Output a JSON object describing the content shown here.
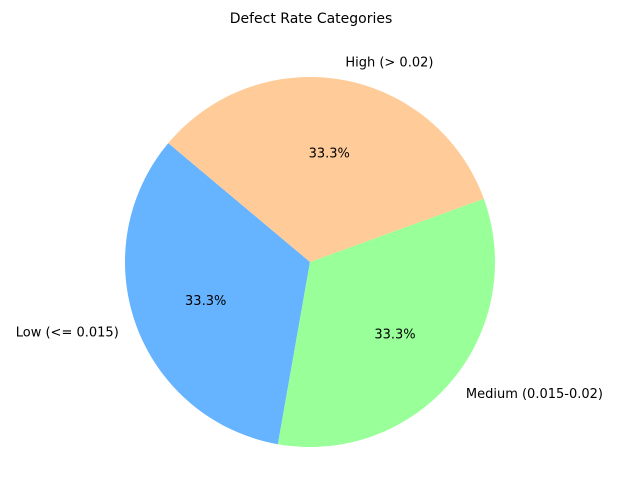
{
  "chart_data": {
    "type": "pie",
    "title": "Defect Rate Categories",
    "start_angle_deg": 140,
    "direction": "counterclockwise",
    "slices": [
      {
        "label": "Low (<= 0.015)",
        "value": 33.3,
        "pct_label": "33.3%",
        "color": "#66b3ff"
      },
      {
        "label": "Medium (0.015-0.02)",
        "value": 33.3,
        "pct_label": "33.3%",
        "color": "#99ff99"
      },
      {
        "label": "High (> 0.02)",
        "value": 33.3,
        "pct_label": "33.3%",
        "color": "#ffcc99"
      }
    ],
    "legend": "none",
    "grid": false
  }
}
